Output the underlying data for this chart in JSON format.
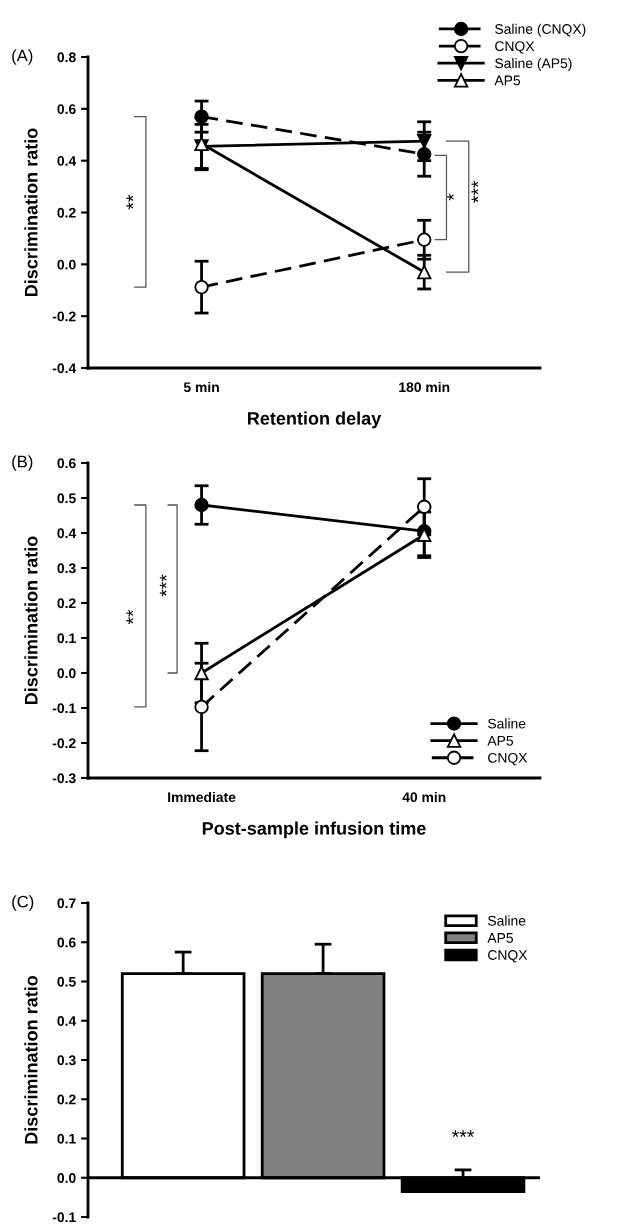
{
  "chart_data": [
    {
      "type": "line",
      "ylabel": "Discrimination ratio",
      "xlabel": "Retention delay",
      "categories": [
        "5 min",
        "180 min"
      ],
      "ylim": [
        -0.4,
        0.8
      ],
      "yticks": [
        {
          "value": -0.4,
          "label": "-0.4"
        },
        {
          "value": -0.2,
          "label": "-0.2"
        },
        {
          "value": 0,
          "label": "0.0"
        },
        {
          "value": 0.2,
          "label": "0.2"
        },
        {
          "value": 0.4,
          "label": "0.4"
        },
        {
          "value": 0.6,
          "label": "0.6"
        },
        {
          "value": 0.8,
          "label": "0.8"
        }
      ],
      "grid": false,
      "legend": "top right",
      "series": [
        {
          "name": "Saline (CNQX)",
          "color": "#000000",
          "values": [
            0.57,
            0.425
          ],
          "errors": [
            0.06,
            0.085
          ],
          "marker": "circle",
          "line_style": "dashed"
        },
        {
          "name": "CNQX",
          "color": "#ffffff",
          "values": [
            -0.088,
            0.095
          ],
          "errors": [
            0.1,
            0.075
          ],
          "marker": "circle",
          "line_style": "dashed"
        },
        {
          "name": "Saline (AP5)",
          "color": "#000000",
          "values": [
            0.455,
            0.475
          ],
          "errors": [
            0.085,
            0.075
          ],
          "marker": "triangle_down",
          "line_style": "solid"
        },
        {
          "name": "AP5",
          "color": "#ffffff",
          "values": [
            0.465,
            -0.03
          ],
          "errors": [
            0.1,
            0.065
          ],
          "marker": "triangle",
          "line_style": "solid"
        }
      ],
      "annotations": [
        "(A)",
        "**",
        "*",
        "***"
      ]
    },
    {
      "type": "line",
      "ylabel": "Discrimination ratio",
      "xlabel": "Post-sample infusion time",
      "categories": [
        "Immediate",
        "40 min"
      ],
      "ylim": [
        -0.3,
        0.6
      ],
      "yticks": [
        {
          "value": -0.3,
          "label": "-0.3"
        },
        {
          "value": -0.2,
          "label": "-0.2"
        },
        {
          "value": -0.1,
          "label": "-0.1"
        },
        {
          "value": 0,
          "label": "0.0"
        },
        {
          "value": 0.1,
          "label": "0.1"
        },
        {
          "value": 0.2,
          "label": "0.2"
        },
        {
          "value": 0.3,
          "label": "0.3"
        },
        {
          "value": 0.4,
          "label": "0.4"
        },
        {
          "value": 0.5,
          "label": "0.5"
        },
        {
          "value": 0.6,
          "label": "0.6"
        }
      ],
      "grid": false,
      "legend": "bottom right",
      "series": [
        {
          "name": "Saline",
          "color": "#000000",
          "values": [
            0.48,
            0.405
          ],
          "errors": [
            0.055,
            0.07
          ],
          "marker": "circle",
          "line_style": "solid"
        },
        {
          "name": "AP5",
          "color": "#ffffff",
          "values": [
            0.0,
            0.395
          ],
          "errors": [
            0.085,
            0.065
          ],
          "marker": "triangle",
          "line_style": "solid"
        },
        {
          "name": "CNQX",
          "color": "#ffffff",
          "values": [
            -0.097,
            0.475
          ],
          "errors": [
            0.125,
            0.08
          ],
          "marker": "circle",
          "line_style": "dashed"
        }
      ],
      "annotations": [
        "(B)",
        "**",
        "***"
      ]
    },
    {
      "type": "bar",
      "ylabel": "Discrimination ratio",
      "categories": [
        null,
        null,
        null
      ],
      "ylim": [
        -0.1,
        0.7
      ],
      "yticks": [
        {
          "value": -0.1,
          "label": "-0.1"
        },
        {
          "value": 0,
          "label": "0.0"
        },
        {
          "value": 0.1,
          "label": "0.1"
        },
        {
          "value": 0.2,
          "label": "0.2"
        },
        {
          "value": 0.3,
          "label": "0.3"
        },
        {
          "value": 0.4,
          "label": "0.4"
        },
        {
          "value": 0.5,
          "label": "0.5"
        },
        {
          "value": 0.6,
          "label": "0.6"
        },
        {
          "value": 0.7,
          "label": "0.7"
        }
      ],
      "grid": false,
      "legend": "top right",
      "series": [
        {
          "name": "Saline",
          "color": "#ffffff",
          "values": [
            0.52,
            null,
            null
          ],
          "errors": [
            [
              0.52,
              0.575
            ],
            null,
            null
          ]
        },
        {
          "name": "AP5",
          "color": "#808080",
          "values": [
            null,
            0.52,
            null
          ],
          "errors": [
            null,
            [
              0.52,
              0.595
            ],
            null
          ]
        },
        {
          "name": "CNQX",
          "color": "#000000",
          "values": [
            null,
            null,
            -0.035
          ],
          "errors": [
            null,
            null,
            [
              -0.035,
              0.02
            ]
          ]
        }
      ],
      "ref_lines": [
        {
          "axis": "y",
          "value": 0,
          "color": "#000000"
        }
      ],
      "annotations": [
        "(C)",
        "***"
      ]
    }
  ]
}
